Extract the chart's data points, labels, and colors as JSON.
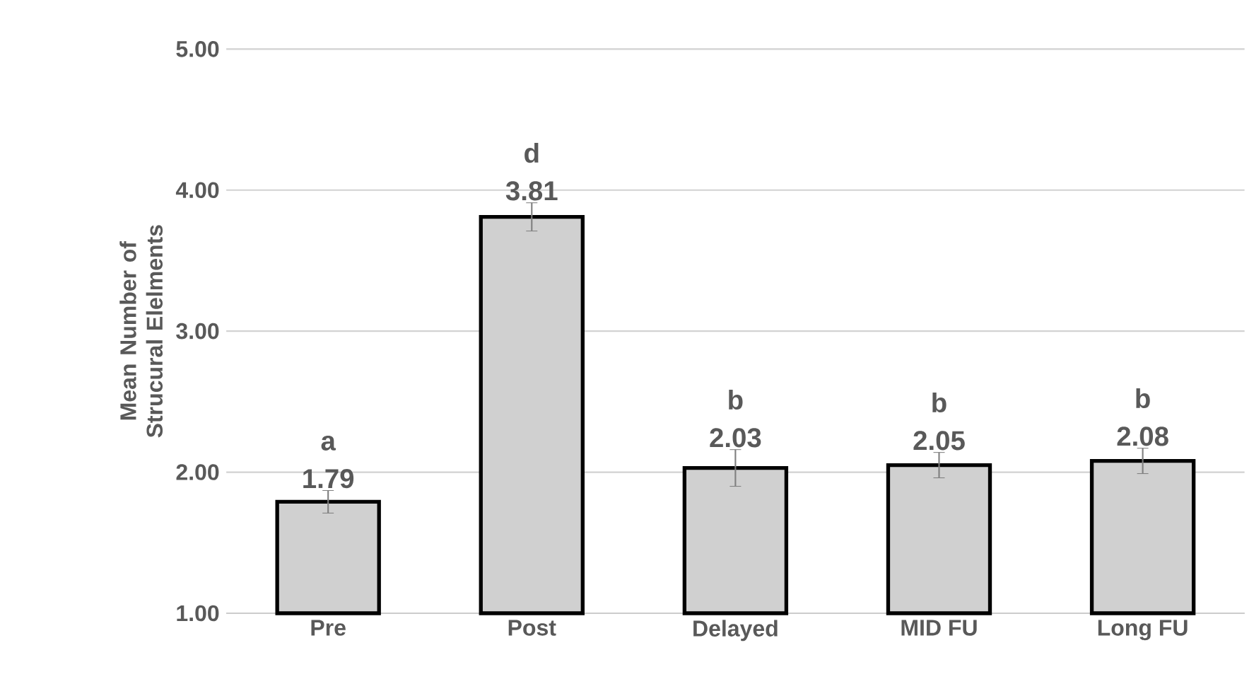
{
  "chart_data": {
    "type": "bar",
    "categories": [
      "Pre",
      "Post",
      "Delayed",
      "MID FU",
      "Long FU"
    ],
    "values": [
      1.79,
      3.81,
      2.03,
      2.05,
      2.08
    ],
    "errors": [
      0.08,
      0.1,
      0.13,
      0.09,
      0.09
    ],
    "color": "#d0d0d0",
    "ylabel": "Mean Number of Strucural Elelments",
    "ylim": [
      1,
      5
    ],
    "yticks": [
      {
        "value": 1,
        "label": "1.00"
      },
      {
        "value": 2,
        "label": "2.00"
      },
      {
        "value": 3,
        "label": "3.00"
      },
      {
        "value": 4,
        "label": "4.00"
      },
      {
        "value": 5,
        "label": "5.00"
      }
    ],
    "grid": "y",
    "data_labels": true,
    "annotations": [
      {
        "text": "a",
        "x": "Pre",
        "y": 1.79
      },
      {
        "text": "d",
        "x": "Post",
        "y": 3.81
      },
      {
        "text": "b",
        "x": "Delayed",
        "y": 2.03
      },
      {
        "text": "b",
        "x": "MID FU",
        "y": 2.05
      },
      {
        "text": "b",
        "x": "Long FU",
        "y": 2.08
      }
    ]
  }
}
